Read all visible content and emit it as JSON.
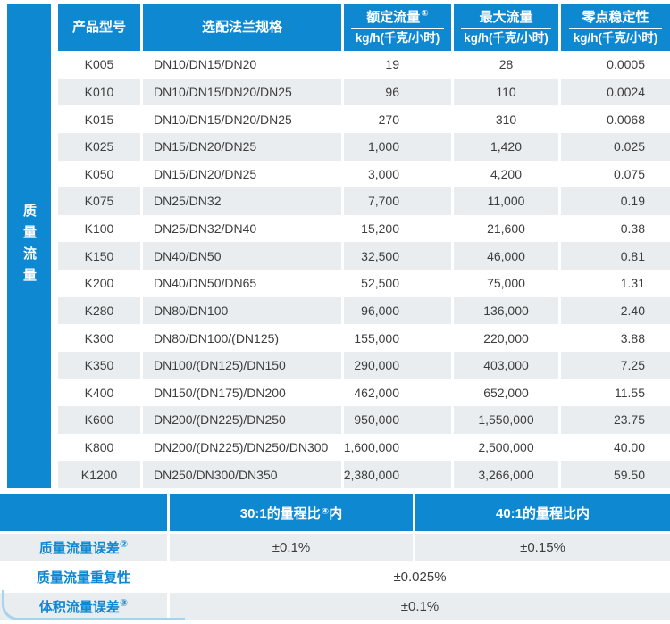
{
  "colors": {
    "blue": "#0f88d2",
    "row_gray": "#e9edf0",
    "corner_light_blue": "#a6d4ec",
    "header_text": "#ffffff",
    "label_blue": "#0f88d2"
  },
  "main_table": {
    "side_label": "质量流量",
    "columns": [
      {
        "label": "产品型号",
        "sup": "",
        "unit": ""
      },
      {
        "label": "选配法兰规格",
        "sup": "",
        "unit": ""
      },
      {
        "label": "额定流量",
        "sup": "①",
        "unit": "kg/h(千克/小时)"
      },
      {
        "label": "最大流量",
        "sup": "",
        "unit": "kg/h(千克/小时)"
      },
      {
        "label": "零点稳定性",
        "sup": "",
        "unit": "kg/h(千克/小时)"
      }
    ],
    "rows": [
      [
        "K005",
        "DN10/DN15/DN20",
        "19",
        "28",
        "0.0005"
      ],
      [
        "K010",
        "DN10/DN15/DN20/DN25",
        "96",
        "110",
        "0.0024"
      ],
      [
        "K015",
        "DN10/DN15/DN20/DN25",
        "270",
        "310",
        "0.0068"
      ],
      [
        "K025",
        "DN15/DN20/DN25",
        "1,000",
        "1,420",
        "0.025"
      ],
      [
        "K050",
        "DN15/DN20/DN25",
        "3,000",
        "4,200",
        "0.075"
      ],
      [
        "K075",
        "DN25/DN32",
        "7,700",
        "11,000",
        "0.19"
      ],
      [
        "K100",
        "DN25/DN32/DN40",
        "15,200",
        "21,600",
        "0.38"
      ],
      [
        "K150",
        "DN40/DN50",
        "32,500",
        "46,000",
        "0.81"
      ],
      [
        "K200",
        "DN40/DN50/DN65",
        "52,500",
        "75,000",
        "1.31"
      ],
      [
        "K280",
        "DN80/DN100",
        "96,000",
        "136,000",
        "2.40"
      ],
      [
        "K300",
        "DN80/DN100/(DN125)",
        "155,000",
        "220,000",
        "3.88"
      ],
      [
        "K350",
        "DN100/(DN125)/DN150",
        "290,000",
        "403,000",
        "7.25"
      ],
      [
        "K400",
        "DN150/(DN175)/DN200",
        "462,000",
        "652,000",
        "11.55"
      ],
      [
        "K600",
        "DN200/(DN225)/DN250",
        "950,000",
        "1,550,000",
        "23.75"
      ],
      [
        "K800",
        "DN200/(DN225)/DN250/DN300",
        "1,600,000",
        "2,500,000",
        "40.00"
      ],
      [
        "K1200",
        "DN250/DN300/DN350",
        "2,380,000",
        "3,266,000",
        "59.50"
      ]
    ]
  },
  "accuracy_table": {
    "header": [
      {
        "pre": "30:1的量程比",
        "sup": "④",
        "post": "内"
      },
      {
        "pre": "40:1的量程比内",
        "sup": "",
        "post": ""
      }
    ],
    "rows": [
      {
        "label": "质量流量误差",
        "sup": "②",
        "values": [
          "±0.1%",
          "±0.15%"
        ]
      },
      {
        "label": "质量流量重复性",
        "sup": "",
        "values": [
          "±0.025%"
        ]
      },
      {
        "label": "体积流量误差",
        "sup": "③",
        "values": [
          "±0.1%"
        ]
      }
    ]
  }
}
